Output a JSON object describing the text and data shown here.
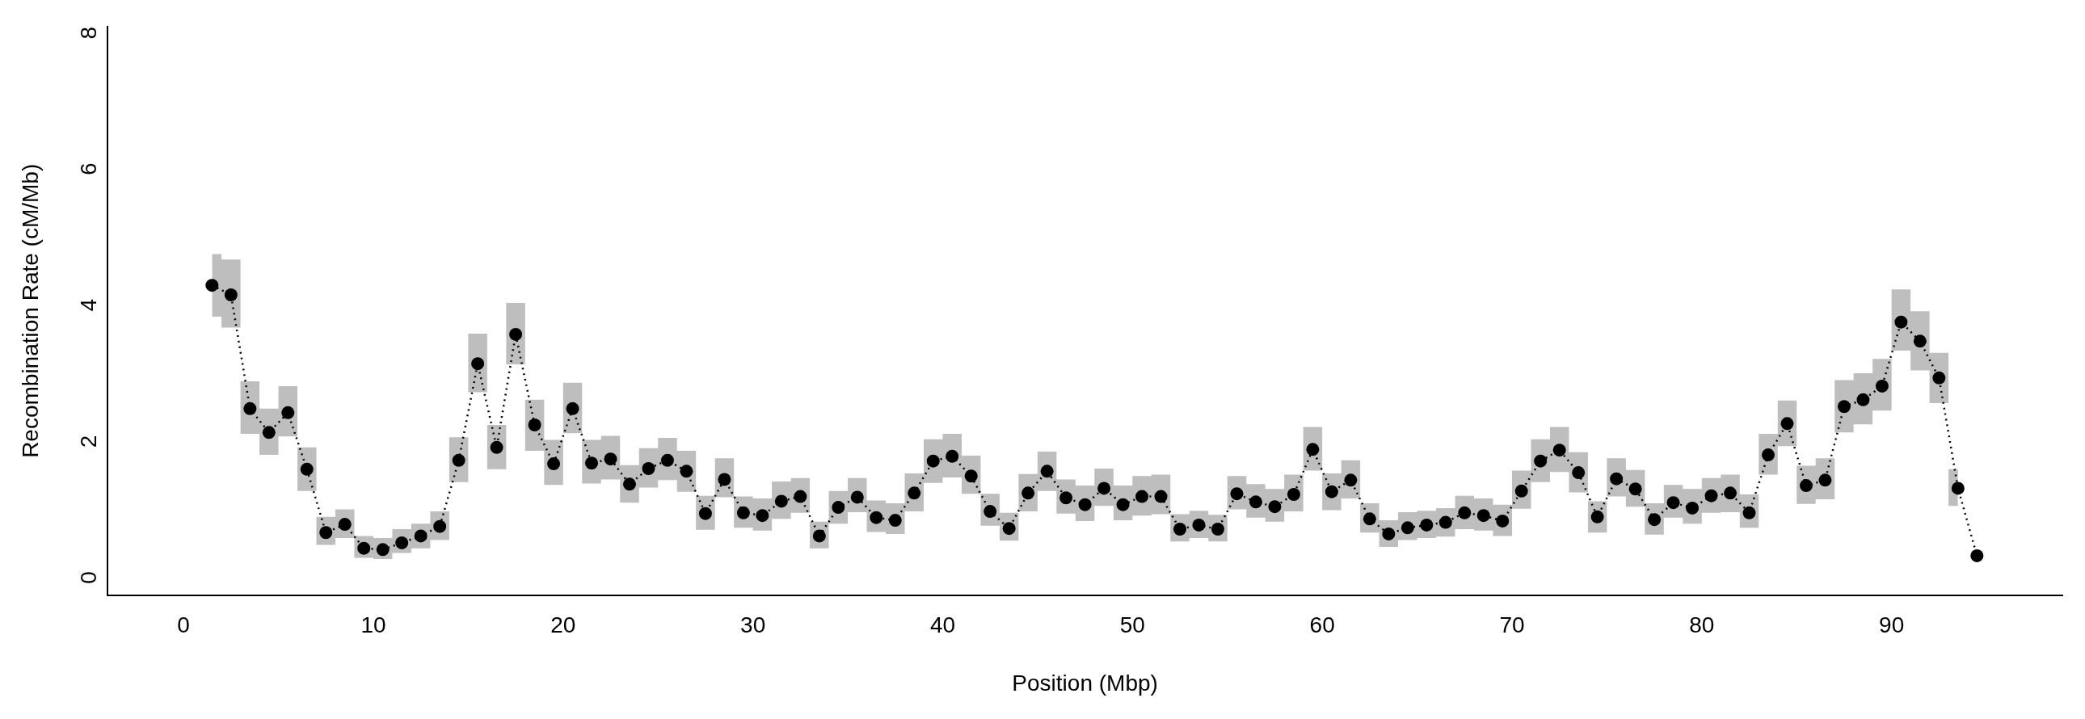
{
  "chart_data": {
    "type": "line",
    "xlabel": "Position (Mbp)",
    "ylabel": "Recombination Rate (cM/Mb)",
    "x": [
      1.5,
      2.5,
      3.5,
      4.5,
      5.5,
      6.5,
      7.5,
      8.5,
      9.5,
      10.5,
      11.5,
      12.5,
      13.5,
      14.5,
      15.5,
      16.5,
      17.5,
      18.5,
      19.5,
      20.5,
      21.5,
      22.5,
      23.5,
      24.5,
      25.5,
      26.5,
      27.5,
      28.5,
      29.5,
      30.5,
      31.5,
      32.5,
      33.5,
      34.5,
      35.5,
      36.5,
      37.5,
      38.5,
      39.5,
      40.5,
      41.5,
      42.5,
      43.5,
      44.5,
      45.5,
      46.5,
      47.5,
      48.5,
      49.5,
      50.5,
      51.5,
      52.5,
      53.5,
      54.5,
      55.5,
      56.5,
      57.5,
      58.5,
      59.5,
      60.5,
      61.5,
      62.5,
      63.5,
      64.5,
      65.5,
      66.5,
      67.5,
      68.5,
      69.5,
      70.5,
      71.5,
      72.5,
      73.5,
      74.5,
      75.5,
      76.5,
      77.5,
      78.5,
      79.5,
      80.5,
      81.5,
      82.5,
      83.5,
      84.5,
      85.5,
      86.5,
      87.5,
      88.5,
      89.5,
      90.5,
      91.5,
      92.5,
      93.5,
      94.5
    ],
    "series": [
      {
        "color": "#000000",
        "values": [
          4.2,
          4.06,
          2.39,
          2.04,
          2.33,
          1.5,
          0.57,
          0.69,
          0.34,
          0.32,
          0.42,
          0.52,
          0.66,
          1.63,
          3.05,
          1.82,
          3.48,
          2.15,
          1.58,
          2.39,
          1.59,
          1.65,
          1.28,
          1.51,
          1.63,
          1.47,
          0.85,
          1.35,
          0.86,
          0.82,
          1.03,
          1.1,
          0.52,
          0.94,
          1.09,
          0.79,
          0.75,
          1.15,
          1.62,
          1.69,
          1.4,
          0.88,
          0.63,
          1.15,
          1.47,
          1.08,
          0.98,
          1.22,
          0.98,
          1.1,
          1.1,
          0.62,
          0.68,
          0.62,
          1.14,
          1.02,
          0.95,
          1.13,
          1.79,
          1.17,
          1.34,
          0.77,
          0.55,
          0.64,
          0.68,
          0.72,
          0.86,
          0.82,
          0.74,
          1.18,
          1.62,
          1.78,
          1.45,
          0.8,
          1.36,
          1.21,
          0.76,
          1.01,
          0.93,
          1.11,
          1.15,
          0.86,
          1.71,
          2.17,
          1.26,
          1.34,
          2.42,
          2.52,
          2.72,
          3.66,
          3.38,
          2.84,
          1.22,
          0.23
        ],
        "lower": [
          3.74,
          3.58,
          2.02,
          1.71,
          1.98,
          1.18,
          0.39,
          0.49,
          0.2,
          0.18,
          0.27,
          0.34,
          0.46,
          1.31,
          2.63,
          1.5,
          3.04,
          1.77,
          1.27,
          2.03,
          1.29,
          1.35,
          1.01,
          1.23,
          1.34,
          1.17,
          0.61,
          1.09,
          0.64,
          0.6,
          0.77,
          0.86,
          0.34,
          0.7,
          0.87,
          0.58,
          0.55,
          0.88,
          1.3,
          1.38,
          1.14,
          0.67,
          0.45,
          0.88,
          1.18,
          0.85,
          0.74,
          0.96,
          0.75,
          0.82,
          0.84,
          0.44,
          0.49,
          0.44,
          0.91,
          0.79,
          0.73,
          0.88,
          1.48,
          0.9,
          1.07,
          0.57,
          0.36,
          0.46,
          0.49,
          0.51,
          0.62,
          0.6,
          0.52,
          0.92,
          1.31,
          1.46,
          1.16,
          0.57,
          1.1,
          0.95,
          0.54,
          0.79,
          0.7,
          0.86,
          0.87,
          0.64,
          1.42,
          1.84,
          0.99,
          1.06,
          2.04,
          2.16,
          2.36,
          3.24,
          2.95,
          2.47,
          0.96,
          null
        ],
        "upper": [
          4.66,
          4.58,
          2.79,
          2.39,
          2.72,
          1.82,
          0.8,
          0.91,
          0.52,
          0.49,
          0.62,
          0.7,
          0.88,
          1.97,
          3.49,
          2.15,
          3.94,
          2.52,
          1.93,
          2.77,
          1.93,
          1.99,
          1.56,
          1.81,
          1.96,
          1.77,
          1.11,
          1.66,
          1.1,
          1.07,
          1.32,
          1.37,
          0.73,
          1.18,
          1.37,
          1.04,
          1.0,
          1.44,
          1.94,
          2.02,
          1.7,
          1.14,
          0.86,
          1.43,
          1.76,
          1.35,
          1.26,
          1.51,
          1.26,
          1.4,
          1.42,
          0.84,
          0.89,
          0.83,
          1.4,
          1.28,
          1.21,
          1.42,
          2.12,
          1.44,
          1.63,
          1.0,
          0.75,
          0.87,
          0.89,
          0.93,
          1.11,
          1.07,
          0.98,
          1.48,
          1.94,
          2.12,
          1.75,
          1.03,
          1.66,
          1.49,
          1.0,
          1.27,
          1.21,
          1.37,
          1.42,
          1.13,
          2.02,
          2.51,
          1.55,
          1.66,
          2.81,
          2.91,
          3.12,
          4.14,
          3.82,
          3.21,
          1.5,
          null
        ]
      }
    ],
    "xlim": [
      -4,
      99
    ],
    "xticks": [
      0,
      10,
      20,
      30,
      40,
      50,
      60,
      70,
      80,
      90
    ],
    "ylim": [
      -0.35,
      8
    ],
    "yticks": [
      0,
      2,
      4,
      6,
      8
    ],
    "grid": false,
    "legend": false,
    "marker": "circle",
    "line_style": "dotted"
  }
}
